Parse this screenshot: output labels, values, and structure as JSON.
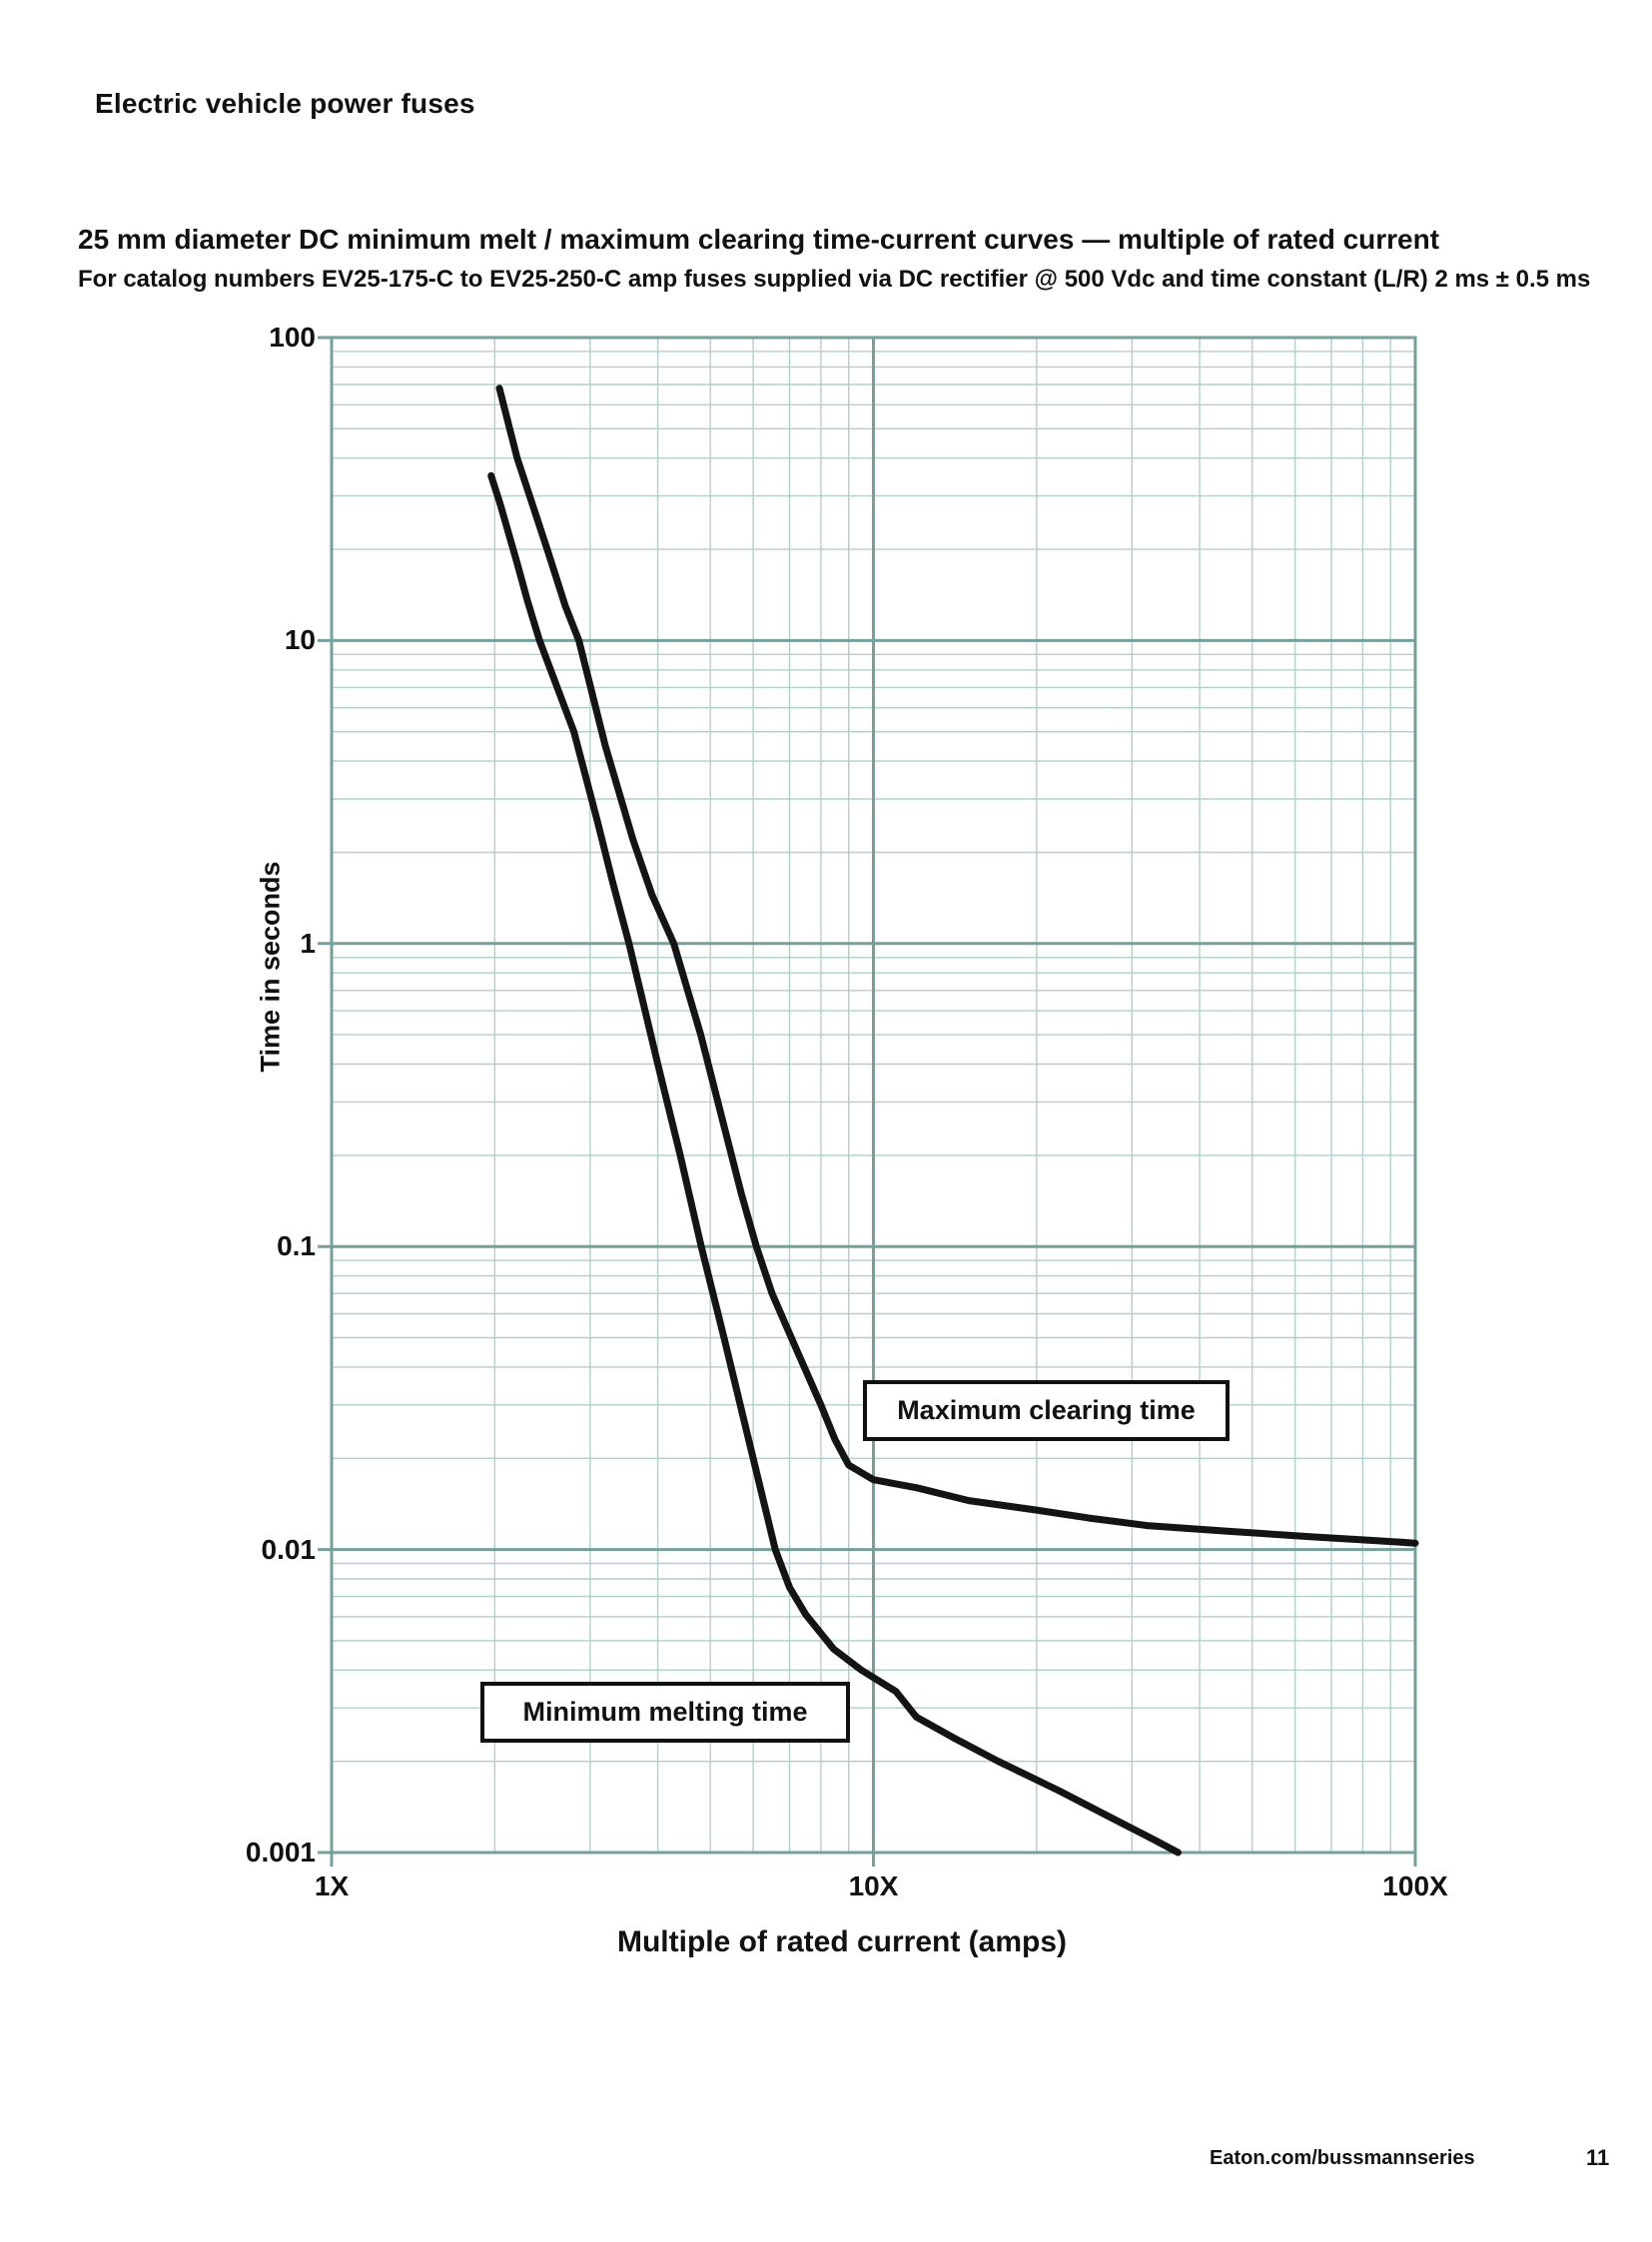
{
  "page": {
    "header": "Electric vehicle power fuses",
    "footer": {
      "link": "Eaton.com/bussmannseries",
      "page_number": "11"
    }
  },
  "chart": {
    "title": "25 mm diameter DC minimum melt / maximum clearing time-current curves — multiple of rated current",
    "subtitle": "For catalog numbers EV25-175-C to EV25-250-C amp fuses supplied via DC rectifier @ 500 Vdc and time constant (L/R) 2 ms ± 0.5 ms",
    "callouts": {
      "max_clearing": "Maximum clearing time",
      "min_melting": "Minimum melting time"
    }
  },
  "chart_data": {
    "type": "line",
    "title": "25 mm diameter DC minimum melt / maximum clearing time-current curves — multiple of rated current",
    "xlabel": "Multiple of rated current (amps)",
    "ylabel": "Time in seconds",
    "x_scale": "log",
    "y_scale": "log",
    "xlim": [
      1,
      100
    ],
    "ylim": [
      0.001,
      100
    ],
    "x_tick_labels": [
      "1X",
      "10X",
      "100X"
    ],
    "x_tick_values": [
      1,
      10,
      100
    ],
    "y_tick_labels": [
      "100",
      "10",
      "1",
      "0.1",
      "0.01",
      "0.001"
    ],
    "y_tick_values": [
      100,
      10,
      1,
      0.1,
      0.01,
      0.001
    ],
    "grid": true,
    "legend_position": "in-plot boxed callouts",
    "colors": {
      "curve": "#141414",
      "grid_major": "#76a09a",
      "grid_minor": "#b2cfca",
      "background": "#ffffff"
    },
    "series": [
      {
        "name": "Maximum clearing time",
        "points": [
          [
            2.04,
            68
          ],
          [
            2.2,
            40
          ],
          [
            2.5,
            20
          ],
          [
            2.7,
            13
          ],
          [
            2.86,
            10
          ],
          [
            3.2,
            4.5
          ],
          [
            3.6,
            2.2
          ],
          [
            3.9,
            1.45
          ],
          [
            4.28,
            1.0
          ],
          [
            4.8,
            0.5
          ],
          [
            5.3,
            0.25
          ],
          [
            5.7,
            0.15
          ],
          [
            6.08,
            0.1
          ],
          [
            6.5,
            0.07
          ],
          [
            7.2,
            0.046
          ],
          [
            8.0,
            0.03
          ],
          [
            8.5,
            0.023
          ],
          [
            9.0,
            0.019
          ],
          [
            10,
            0.017
          ],
          [
            12,
            0.016
          ],
          [
            15,
            0.0145
          ],
          [
            20,
            0.0135
          ],
          [
            25,
            0.0127
          ],
          [
            32,
            0.012
          ],
          [
            45,
            0.0115
          ],
          [
            65,
            0.011
          ],
          [
            85,
            0.0107
          ],
          [
            100,
            0.0105
          ]
        ]
      },
      {
        "name": "Minimum melting time",
        "points": [
          [
            1.97,
            35
          ],
          [
            2.05,
            28
          ],
          [
            2.2,
            18
          ],
          [
            2.3,
            13.5
          ],
          [
            2.42,
            10
          ],
          [
            2.8,
            5.0
          ],
          [
            3.1,
            2.5
          ],
          [
            3.3,
            1.6
          ],
          [
            3.54,
            1.0
          ],
          [
            4.0,
            0.4
          ],
          [
            4.4,
            0.2
          ],
          [
            4.81,
            0.1
          ],
          [
            5.3,
            0.05
          ],
          [
            6.0,
            0.02
          ],
          [
            6.59,
            0.01
          ],
          [
            7.0,
            0.0075
          ],
          [
            7.5,
            0.0061
          ],
          [
            8.44,
            0.0047
          ],
          [
            9.5,
            0.004
          ],
          [
            11,
            0.0034
          ],
          [
            12,
            0.0028
          ],
          [
            14,
            0.0024
          ],
          [
            17,
            0.002
          ],
          [
            22,
            0.0016
          ],
          [
            28,
            0.00128
          ],
          [
            33,
            0.0011
          ],
          [
            36.5,
            0.001
          ]
        ]
      }
    ]
  }
}
